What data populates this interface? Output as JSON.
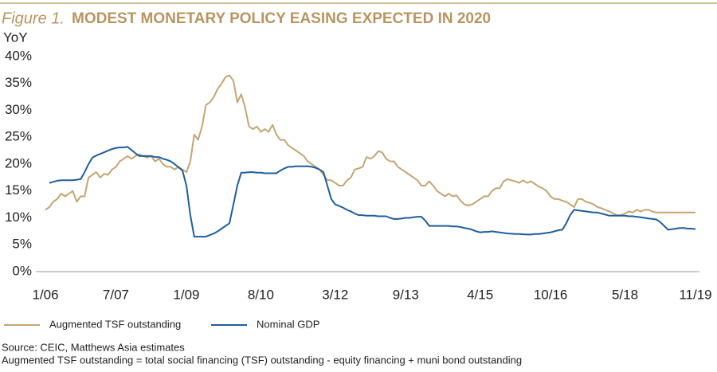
{
  "chart_data": {
    "type": "line",
    "title_prefix": "Figure 1.",
    "title": "MODEST MONETARY POLICY EASING EXPECTED IN 2020",
    "y_label": "YoY",
    "categories": [
      "1/06",
      null,
      null,
      null,
      null,
      null,
      null,
      null,
      null,
      null,
      null,
      null,
      null,
      null,
      null,
      null,
      null,
      null,
      "7/07",
      null,
      null,
      null,
      null,
      null,
      null,
      null,
      null,
      null,
      null,
      null,
      null,
      null,
      null,
      null,
      null,
      null,
      "1/09",
      null,
      null,
      null,
      null,
      null,
      null,
      null,
      null,
      null,
      null,
      null,
      null,
      null,
      null,
      null,
      null,
      null,
      null,
      "8/10",
      null,
      null,
      null,
      null,
      null,
      null,
      null,
      null,
      null,
      null,
      null,
      null,
      null,
      null,
      null,
      null,
      null,
      null,
      "3/12",
      null,
      null,
      null,
      null,
      null,
      null,
      null,
      null,
      null,
      null,
      null,
      null,
      null,
      null,
      null,
      null,
      null,
      "9/13",
      null,
      null,
      null,
      null,
      null,
      null,
      null,
      null,
      null,
      null,
      null,
      null,
      null,
      null,
      null,
      null,
      null,
      null,
      "4/15",
      null,
      null,
      null,
      null,
      null,
      null,
      null,
      null,
      null,
      null,
      null,
      null,
      null,
      null,
      null,
      null,
      null,
      "10/16",
      null,
      null,
      null,
      null,
      null,
      null,
      null,
      null,
      null,
      null,
      null,
      null,
      null,
      null,
      null,
      null,
      null,
      null,
      "5/18",
      null,
      null,
      null,
      null,
      null,
      null,
      null,
      null,
      null,
      null,
      null,
      null,
      null,
      null,
      null,
      null,
      null,
      "11/19"
    ],
    "series": [
      {
        "name": "Augmented TSF outstanding",
        "color": "#c4a574",
        "values": [
          11.5,
          12,
          13,
          13.5,
          14.5,
          14,
          14.5,
          15,
          13,
          14,
          14,
          17.5,
          18,
          18.5,
          17.5,
          18.2,
          18,
          19,
          19.5,
          20.5,
          21,
          21.5,
          21,
          21.5,
          21.8,
          21.5,
          21.2,
          21.5,
          20.5,
          21,
          20,
          19.5,
          19.5,
          19,
          19.5,
          19,
          18.5,
          20.5,
          25.5,
          24.5,
          27,
          31,
          31.5,
          32.5,
          34,
          35,
          36.2,
          36.5,
          35.5,
          31.5,
          33,
          30.5,
          27,
          26.5,
          27,
          26,
          26.5,
          26,
          27.3,
          25.5,
          24.5,
          24.5,
          23.5,
          23,
          22.5,
          22,
          21.5,
          20.5,
          20,
          19.5,
          19,
          18,
          17,
          17,
          16.5,
          16,
          16,
          17,
          17.5,
          19,
          19.2,
          19.5,
          21.3,
          21,
          21.5,
          22.4,
          22.2,
          21,
          20.5,
          20.5,
          19.5,
          19,
          18.5,
          18,
          17.5,
          17,
          16,
          16,
          16.8,
          16,
          15,
          14.5,
          14,
          14.5,
          14,
          14.2,
          13.2,
          12.5,
          12.3,
          12.5,
          13,
          13.5,
          14,
          14,
          15,
          15.5,
          15.5,
          16.8,
          17.2,
          17,
          16.8,
          16.5,
          17,
          16.5,
          16.8,
          16.3,
          15.8,
          15.5,
          15,
          14,
          13.5,
          13.5,
          13.2,
          13,
          12.5,
          12,
          13.5,
          13.5,
          13,
          12.8,
          12.5,
          12,
          11.8,
          11.5,
          11.2,
          10.8,
          10.5,
          10.5,
          10.8,
          11.2,
          11,
          11.5,
          11.2,
          11.5,
          11.5,
          11.2,
          11,
          11,
          11,
          11,
          11,
          11,
          11,
          11,
          11,
          11,
          11
        ]
      },
      {
        "name": "Nominal GDP",
        "color": "#1f5e9e",
        "values": [
          null,
          16.5,
          16.7,
          16.9,
          17,
          17,
          17,
          17,
          17.1,
          17.2,
          18.5,
          20,
          21.2,
          21.6,
          21.9,
          22.2,
          22.5,
          22.8,
          23,
          23.1,
          23.1,
          23.2,
          22.6,
          22,
          21.5,
          21.5,
          21.5,
          21.5,
          21.3,
          21.3,
          21,
          20.8,
          20.5,
          20,
          19.4,
          18.8,
          16,
          10.5,
          6.5,
          6.5,
          6.5,
          6.5,
          6.8,
          7.1,
          7.5,
          8,
          8.5,
          9,
          12.5,
          16,
          18.4,
          18.4,
          18.5,
          18.5,
          18.4,
          18.4,
          18.3,
          18.3,
          18.3,
          18.3,
          18.8,
          19.2,
          19.5,
          19.5,
          19.6,
          19.6,
          19.6,
          19.6,
          19.5,
          19.3,
          19,
          18.5,
          16,
          13.5,
          12.5,
          12.2,
          11.9,
          11.5,
          11.2,
          10.8,
          10.5,
          10.5,
          10.4,
          10.4,
          10.4,
          10.3,
          10.3,
          10.3,
          10,
          9.8,
          9.8,
          9.9,
          10,
          10,
          10.1,
          10.2,
          10.2,
          9.5,
          8.5,
          8.5,
          8.5,
          8.5,
          8.5,
          8.5,
          8.4,
          8.4,
          8.3,
          8.1,
          8,
          7.8,
          7.5,
          7.3,
          7.4,
          7.4,
          7.5,
          7.4,
          7.3,
          7.2,
          7.1,
          7.05,
          7,
          7,
          6.95,
          6.9,
          6.9,
          7,
          7,
          7.1,
          7.2,
          7.3,
          7.5,
          7.7,
          7.8,
          9,
          10.5,
          11.5,
          11.4,
          11.3,
          11.2,
          11.1,
          11,
          11,
          10.8,
          10.6,
          10.4,
          10.4,
          10.4,
          10.4,
          10.4,
          10.3,
          10.3,
          10.2,
          10.1,
          10,
          9.9,
          9.8,
          9.7,
          9.2,
          8.5,
          7.8,
          7.9,
          8,
          8.1,
          8.1,
          8,
          8,
          7.9
        ]
      }
    ],
    "ylim": [
      0,
      40
    ],
    "yticks": [
      {
        "value": 0,
        "label": "0%"
      },
      {
        "value": 5,
        "label": "5%"
      },
      {
        "value": 10,
        "label": "10%"
      },
      {
        "value": 15,
        "label": "15%"
      },
      {
        "value": 20,
        "label": "20%"
      },
      {
        "value": 25,
        "label": "25%"
      },
      {
        "value": 30,
        "label": "30%"
      },
      {
        "value": 35,
        "label": "35%"
      },
      {
        "value": 40,
        "label": "40%"
      }
    ],
    "grid": false,
    "legend": "bottom",
    "notes": [
      "Source: CEIC, Matthews Asia estimates",
      "Augmented TSF outstanding = total social financing (TSF) outstanding - equity financing + muni bond outstanding"
    ]
  }
}
